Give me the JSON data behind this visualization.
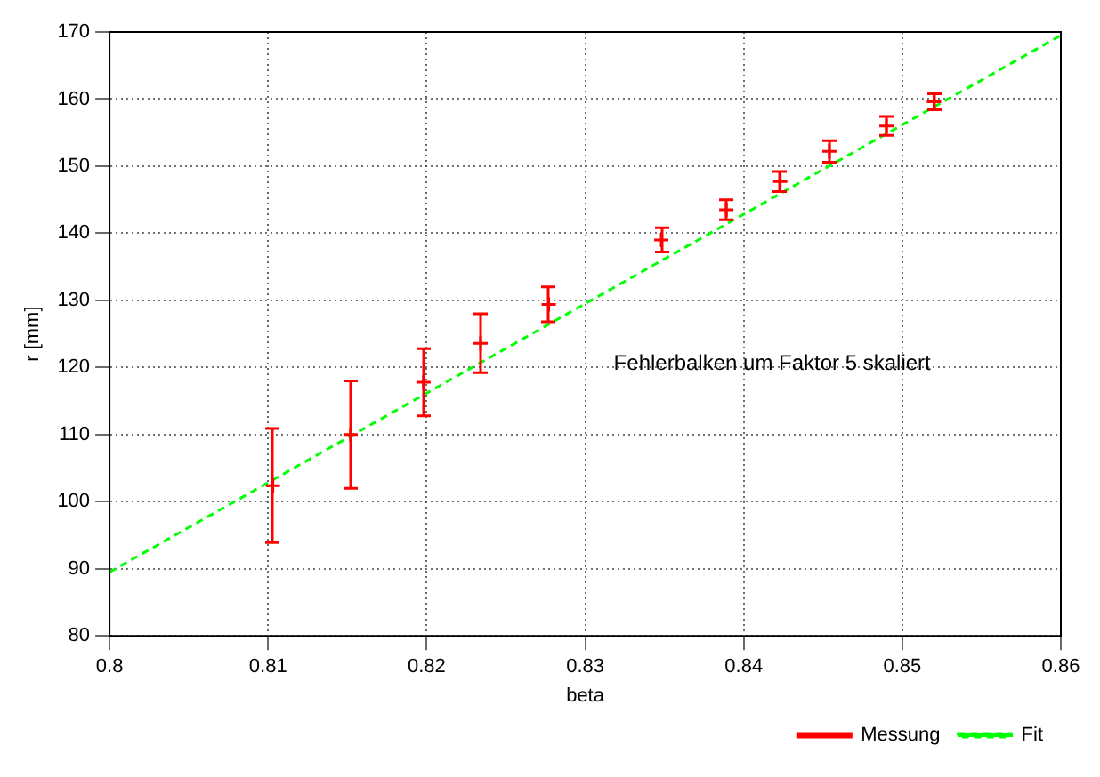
{
  "chart_data": {
    "type": "scatter",
    "xlabel": "beta",
    "ylabel": "r [mm]",
    "xlim": [
      0.8,
      0.86
    ],
    "xticks": [
      0.8,
      0.81,
      0.82,
      0.83,
      0.84,
      0.85,
      0.86
    ],
    "ylim": [
      80,
      170
    ],
    "yticks": [
      80,
      90,
      100,
      110,
      120,
      130,
      140,
      150,
      160,
      170
    ],
    "grid": true,
    "legend": "bottom right",
    "marker": "cross",
    "annotations": [
      "Fehlerbalken um Faktor 5 skaliert"
    ],
    "series": [
      {
        "name": "Messung",
        "color": "#ff0000",
        "x": [
          0.8103,
          0.8152,
          0.8198,
          0.8234,
          0.8277,
          0.8348,
          0.8389,
          0.8423,
          0.8454,
          0.849,
          0.852
        ],
        "values": [
          102.4,
          110,
          117.8,
          123.6,
          129.4,
          139,
          143.5,
          147.7,
          152.2,
          156,
          159.6
        ],
        "errors": [
          8.5,
          8,
          5,
          4.4,
          2.6,
          1.8,
          1.5,
          1.5,
          1.6,
          1.4,
          1.2
        ]
      },
      {
        "name": "Fit",
        "type": "line",
        "color": "#00ff00",
        "line_style": "dashed",
        "marker": "none",
        "x": [
          0.8,
          0.86
        ],
        "values": [
          89.5,
          169.5
        ]
      }
    ]
  }
}
